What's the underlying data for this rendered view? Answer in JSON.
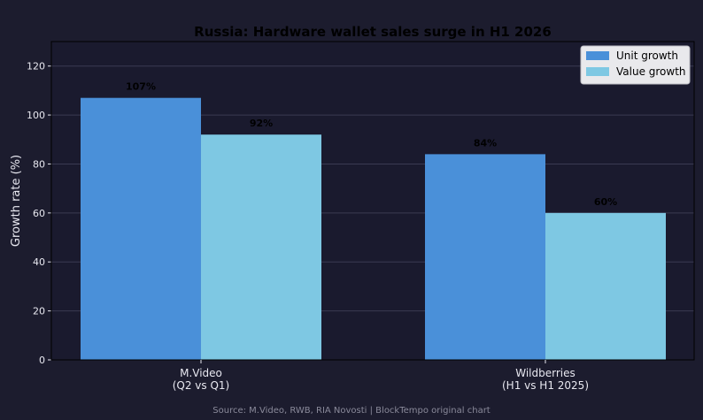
{
  "chart_data": {
    "type": "bar",
    "title": "Russia: Hardware wallet sales surge in H1 2026",
    "xlabel": "",
    "ylabel": "Growth rate (%)",
    "categories": [
      "M.Video\n(Q2 vs Q1)",
      "Wildberries\n(H1 vs H1 2025)"
    ],
    "series": [
      {
        "name": "Unit growth",
        "values": [
          107,
          84
        ],
        "labels": [
          "107%",
          "84%"
        ],
        "color": "#4a90d9"
      },
      {
        "name": "Value growth",
        "values": [
          92,
          60
        ],
        "labels": [
          "92%",
          "60%"
        ],
        "color": "#7ec8e3"
      }
    ],
    "ylim": [
      0,
      130
    ],
    "yticks": [
      0,
      20,
      40,
      60,
      80,
      100,
      120
    ],
    "grid": true,
    "legend": "top-right",
    "source": "Source: M.Video, RWB, RIA Novosti | BlockTempo original chart"
  },
  "colors": {
    "background": "#1c1c2e",
    "axes_face": "#1a1a2e",
    "grid": "#3a3a52",
    "text": "#e8e8f0",
    "title": "#000000",
    "value_label": "#000000",
    "source_text": "#8a8a9a",
    "legend_bg": "#e9e9ec"
  }
}
